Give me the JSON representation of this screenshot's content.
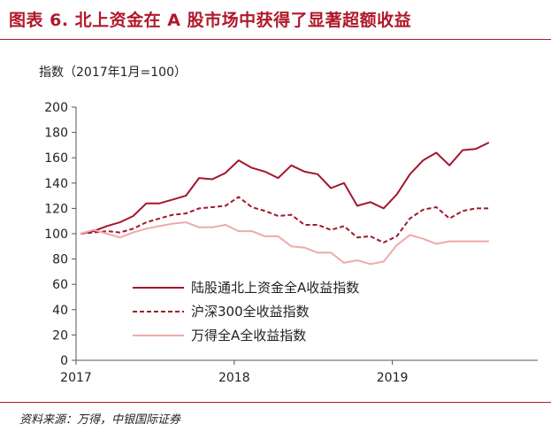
{
  "title": "图表 6. 北上资金在 A 股市场中获得了显著超额收益",
  "source": "资料来源：万得，中银国际证券",
  "colors": {
    "title": "#b0192b",
    "series1": "#a3162c",
    "series2": "#a3162c",
    "series3": "#eeaaaa"
  },
  "chart_data": {
    "type": "line",
    "ylabel": "指数（2017年1月=100）",
    "ylim": [
      0,
      200
    ],
    "yticks": [
      0,
      20,
      40,
      60,
      80,
      100,
      120,
      140,
      160,
      180,
      200
    ],
    "xlim": [
      0,
      36
    ],
    "xticks": [
      {
        "label": "2017",
        "pos": 0
      },
      {
        "label": "2018",
        "pos": 12
      },
      {
        "label": "2019",
        "pos": 24
      }
    ],
    "legend_position": "lower-left",
    "series": [
      {
        "name": "陆股通北上资金全A收益指数",
        "style": "solid",
        "values": [
          100,
          102,
          106,
          109,
          114,
          124,
          124,
          127,
          130,
          144,
          143,
          148,
          158,
          152,
          149,
          144,
          154,
          149,
          147,
          136,
          140,
          122,
          125,
          120,
          131,
          147,
          158,
          164,
          154,
          166,
          167,
          172
        ]
      },
      {
        "name": "沪深300全收益指数",
        "style": "dashed",
        "values": [
          100,
          101,
          102,
          101,
          104,
          109,
          112,
          115,
          116,
          120,
          121,
          122,
          129,
          121,
          118,
          114,
          115,
          107,
          107,
          103,
          106,
          97,
          98,
          93,
          98,
          112,
          119,
          121,
          112,
          118,
          120,
          120
        ]
      },
      {
        "name": "万得全A全收益指数",
        "style": "solid",
        "values": [
          100,
          103,
          100,
          97,
          101,
          104,
          106,
          108,
          109,
          105,
          105,
          107,
          102,
          102,
          98,
          98,
          90,
          89,
          85,
          85,
          77,
          79,
          76,
          78,
          91,
          99,
          96,
          92,
          94,
          94,
          94,
          94
        ]
      }
    ]
  }
}
